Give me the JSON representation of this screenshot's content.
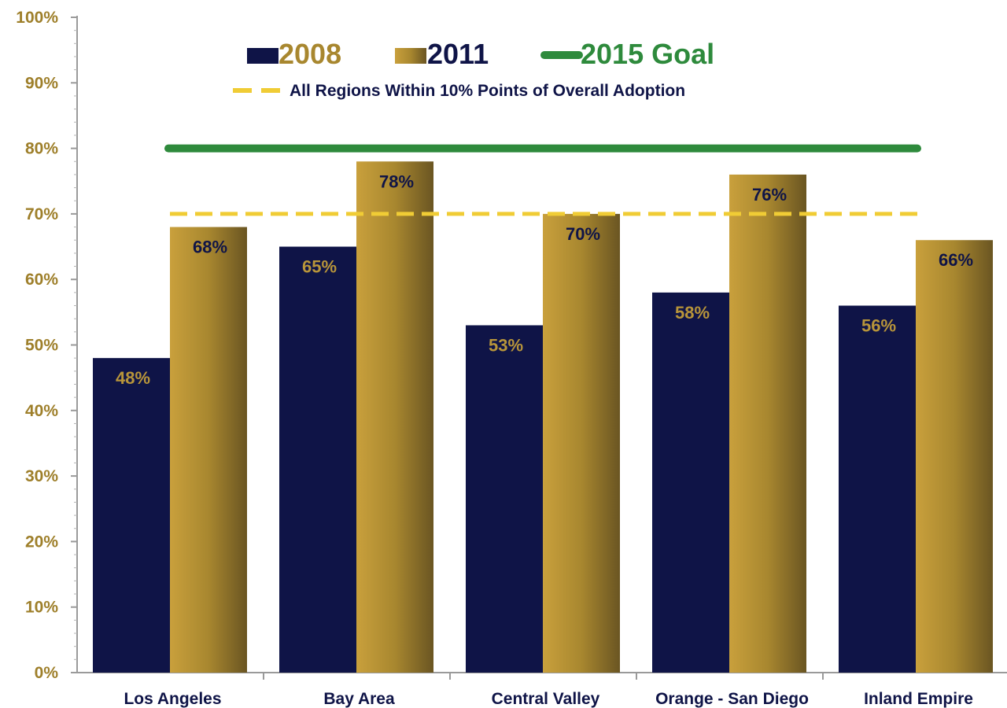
{
  "chart_data": {
    "type": "bar",
    "categories": [
      "Los Angeles",
      "Bay Area",
      "Central Valley",
      "Orange - San Diego",
      "Inland Empire"
    ],
    "series": [
      {
        "name": "2008",
        "values": [
          48,
          65,
          53,
          58,
          56
        ],
        "labels": [
          "48%",
          "65%",
          "53%",
          "58%",
          "56%"
        ],
        "color": "#0f1447"
      },
      {
        "name": "2011",
        "values": [
          68,
          78,
          70,
          76,
          66
        ],
        "labels": [
          "68%",
          "78%",
          "70%",
          "76%",
          "66%"
        ],
        "color": "#a8872f"
      }
    ],
    "reference_lines": [
      {
        "name": "2015 Goal",
        "value": 80,
        "style": "solid",
        "color": "#2e8a3c"
      },
      {
        "name": "All Regions Within 10% Points of Overall Adoption",
        "value": 70,
        "style": "dashed",
        "color": "#f0cc35"
      }
    ],
    "ylim": [
      0,
      100
    ],
    "yticks": [
      "0%",
      "10%",
      "20%",
      "30%",
      "40%",
      "50%",
      "60%",
      "70%",
      "80%",
      "90%",
      "100%"
    ],
    "legend_placement": "top-center",
    "grid": false
  }
}
